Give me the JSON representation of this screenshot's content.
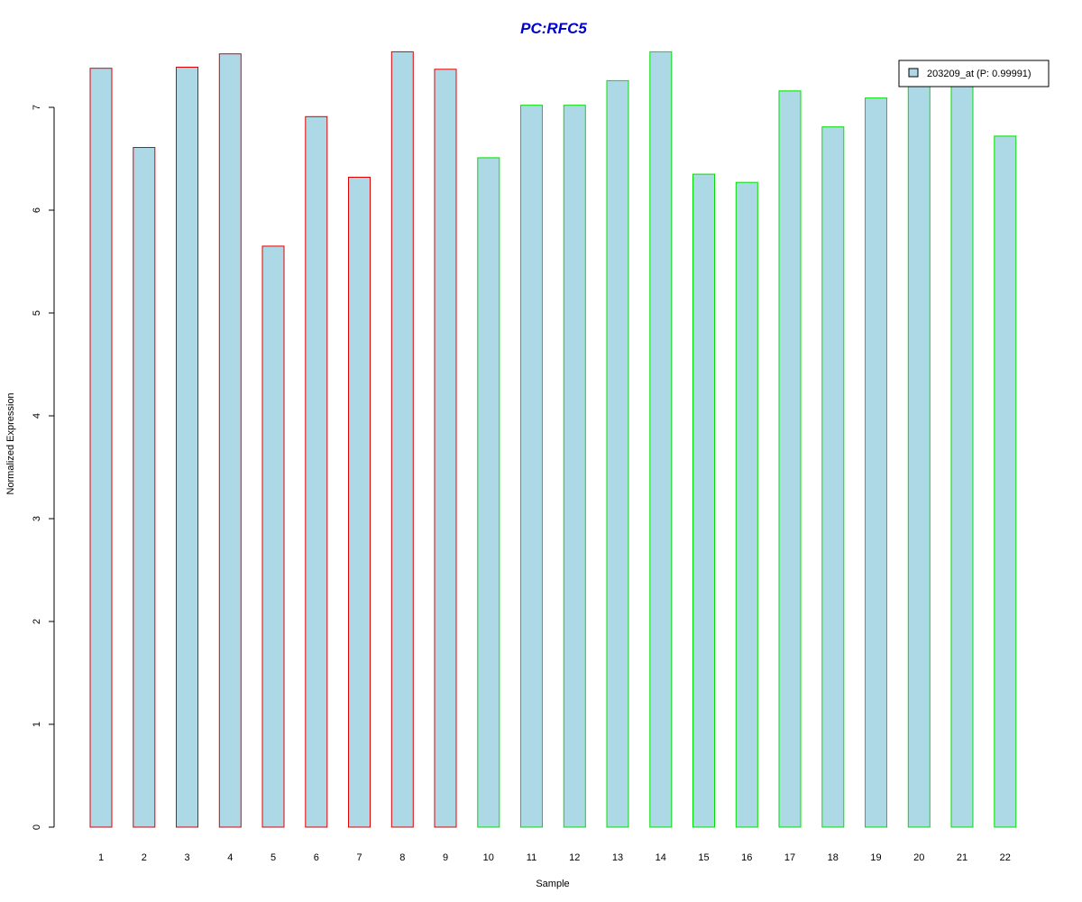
{
  "chart_data": {
    "type": "bar",
    "title": "PC:RFC5",
    "xlabel": "Sample",
    "ylabel": "Normalized Expression",
    "categories": [
      "1",
      "2",
      "3",
      "4",
      "5",
      "6",
      "7",
      "8",
      "9",
      "10",
      "11",
      "12",
      "13",
      "14",
      "15",
      "16",
      "17",
      "18",
      "19",
      "20",
      "21",
      "22"
    ],
    "values": [
      7.38,
      6.61,
      7.39,
      7.52,
      5.65,
      6.91,
      6.32,
      7.54,
      7.37,
      6.51,
      7.02,
      7.02,
      7.26,
      7.54,
      6.35,
      6.27,
      7.16,
      6.81,
      7.09,
      7.32,
      7.3,
      6.72
    ],
    "group_border_colors": [
      "#e00000",
      "#e00000",
      "#e00000",
      "#e00000",
      "#e00000",
      "#e00000",
      "#e00000",
      "#e00000",
      "#e00000",
      "#00e000",
      "#00e000",
      "#00e000",
      "#00e000",
      "#00e000",
      "#00e000",
      "#00e000",
      "#00e000",
      "#00e000",
      "#00e000",
      "#00e000",
      "#00e000",
      "#00e000"
    ],
    "bar_fill": "#add8e6",
    "ylim": [
      0,
      7.6
    ],
    "yticks": [
      0,
      1,
      2,
      3,
      4,
      5,
      6,
      7
    ],
    "legend": {
      "label": "203209_at (P: 0.99991)",
      "position": "top-right"
    },
    "grid": false,
    "title_color": "#0000cc"
  }
}
